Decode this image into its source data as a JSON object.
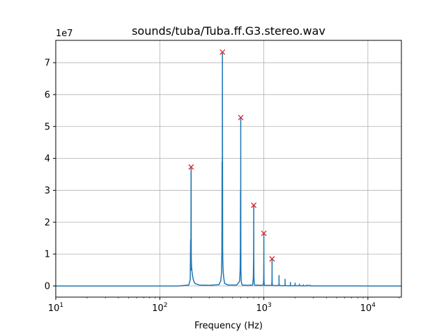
{
  "chart_data": {
    "type": "line",
    "title": "sounds/tuba/Tuba.ff.G3.stereo.wav",
    "xlabel": "Frequency (Hz)",
    "ylabel": "",
    "xscale": "log",
    "xlim": [
      10,
      21000
    ],
    "ylim": [
      -3500000.0,
      77000000.0
    ],
    "y_offset_label": "1e7",
    "x_ticks": [
      {
        "value": 10,
        "base": "10",
        "exp": "1"
      },
      {
        "value": 100,
        "base": "10",
        "exp": "2"
      },
      {
        "value": 1000,
        "base": "10",
        "exp": "3"
      },
      {
        "value": 10000,
        "base": "10",
        "exp": "4"
      }
    ],
    "y_ticks": [
      {
        "value": 0,
        "label": "0"
      },
      {
        "value": 10000000,
        "label": "1"
      },
      {
        "value": 20000000,
        "label": "2"
      },
      {
        "value": 30000000,
        "label": "3"
      },
      {
        "value": 40000000,
        "label": "4"
      },
      {
        "value": 50000000,
        "label": "5"
      },
      {
        "value": 60000000,
        "label": "6"
      },
      {
        "value": 70000000,
        "label": "7"
      }
    ],
    "grid": true,
    "series": [
      {
        "color": "#1f77b4",
        "x": [
          10,
          150,
          190,
          196,
          197,
          198,
          199,
          200,
          200.5,
          201,
          202,
          204,
          207,
          210,
          215,
          220,
          240,
          300,
          370,
          385,
          392,
          395,
          396,
          397,
          398,
          399,
          400,
          401,
          402,
          403,
          405,
          408,
          412,
          420,
          450,
          550,
          585,
          592,
          595,
          597,
          598,
          599,
          600,
          601,
          602,
          604,
          607,
          612,
          620,
          700,
          780,
          792,
          797,
          799,
          800,
          801,
          803,
          808,
          815,
          950,
          990,
          997,
          999,
          1000,
          1001,
          1003,
          1008,
          1015,
          1150,
          1190,
          1197,
          1199,
          1200,
          1201,
          1203,
          1208,
          1215,
          1350,
          1395,
          1399,
          1400,
          1401,
          1405,
          1450,
          1590,
          1599,
          1600,
          1601,
          1610,
          1700,
          1790,
          1799,
          1800,
          1801,
          1810,
          1950,
          1999,
          2000,
          2001,
          2010,
          2150,
          2199,
          2200,
          2201,
          2210,
          2390,
          2399,
          2400,
          2401,
          2410,
          2590,
          2599,
          2600,
          2601,
          2610,
          2790,
          2800,
          2810,
          3000,
          3200,
          3400,
          3600,
          4000,
          5000,
          7000,
          10000,
          21000
        ],
        "values": [
          0,
          0,
          300000,
          2000000,
          8000000,
          14500000,
          5000000,
          37300000,
          12000000,
          8000000,
          6000000,
          4500000,
          3000000,
          2000000,
          1000000,
          700000,
          300000,
          200000,
          400000,
          1500000,
          4000000,
          10000000,
          20000000,
          39000000,
          30000000,
          20000000,
          73300000,
          40000000,
          12000000,
          8500000,
          6000000,
          4000000,
          2500000,
          800000,
          300000,
          300000,
          1500000,
          5000000,
          12000000,
          30000000,
          20000000,
          12000000,
          52800000,
          18000000,
          6000000,
          3000000,
          1500000,
          800000,
          300000,
          200000,
          300000,
          2500000,
          8000000,
          15000000,
          25300000,
          10000000,
          3000000,
          1000000,
          300000,
          200000,
          300000,
          2500000,
          8000000,
          16500000,
          7000000,
          2000000,
          600000,
          200000,
          150000,
          200000,
          1500000,
          4000000,
          8500000,
          3500000,
          1000000,
          300000,
          150000,
          100000,
          200000,
          1000000,
          3300000,
          1000000,
          200000,
          100000,
          100000,
          500000,
          2100000,
          500000,
          100000,
          80000,
          80000,
          400000,
          1100000,
          300000,
          80000,
          70000,
          300000,
          900000,
          250000,
          60000,
          60000,
          250000,
          600000,
          150000,
          50000,
          50000,
          350000,
          100000,
          50000,
          50000,
          40000,
          300000,
          80000,
          40000,
          40000,
          200000,
          40000,
          30000,
          30000,
          25000,
          20000,
          15000,
          12000,
          8000,
          5000,
          3000,
          0
        ]
      }
    ],
    "peaks": {
      "color": "#d62728",
      "marker": "x",
      "x": [
        200,
        400,
        600,
        800,
        1000,
        1200
      ],
      "values": [
        37300000,
        73300000,
        52800000,
        25300000,
        16500000,
        8500000
      ]
    }
  }
}
